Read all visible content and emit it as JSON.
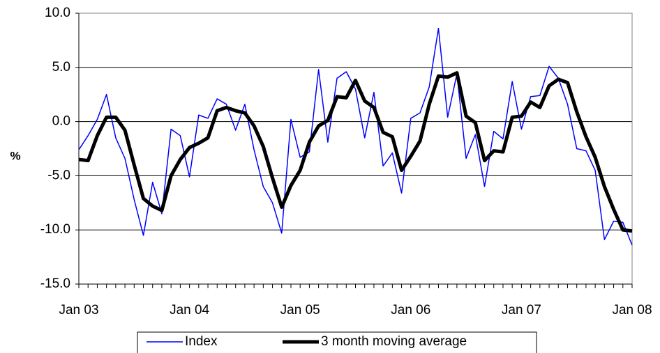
{
  "chart_data": {
    "type": "line",
    "y_label": "%",
    "categories": [
      "Jan 03",
      null,
      null,
      null,
      null,
      null,
      null,
      null,
      null,
      null,
      null,
      null,
      "Jan 04",
      null,
      null,
      null,
      null,
      null,
      null,
      null,
      null,
      null,
      null,
      null,
      "Jan 05",
      null,
      null,
      null,
      null,
      null,
      null,
      null,
      null,
      null,
      null,
      null,
      "Jan 06",
      null,
      null,
      null,
      null,
      null,
      null,
      null,
      null,
      null,
      null,
      null,
      "Jan 07",
      null,
      null,
      null,
      null,
      null,
      null,
      null,
      null,
      null,
      null,
      null,
      "Jan 08"
    ],
    "series": [
      {
        "name": "Index",
        "color": "#0000ff",
        "width": 1.5,
        "values": [
          -2.6,
          -1.3,
          0.2,
          2.5,
          -1.5,
          -3.4,
          -7.2,
          -10.5,
          -5.6,
          -8.5,
          -0.7,
          -1.3,
          -5.1,
          0.6,
          0.3,
          2.1,
          1.6,
          -0.8,
          1.6,
          -2.6,
          -6.0,
          -7.5,
          -10.3,
          0.2,
          -3.3,
          -2.8,
          4.8,
          -1.9,
          4.0,
          4.6,
          3.0,
          -1.5,
          2.7,
          -4.1,
          -2.9,
          -6.6,
          0.3,
          0.8,
          3.2,
          8.6,
          0.4,
          4.4,
          -3.4,
          -1.2,
          -6.0,
          -0.9,
          -1.6,
          3.7,
          -0.7,
          2.3,
          2.4,
          5.1,
          4.0,
          1.6,
          -2.5,
          -2.7,
          -4.5,
          -10.9,
          -9.2,
          -9.3,
          -11.4
        ]
      },
      {
        "name": "3 month moving average",
        "color": "#000000",
        "width": 5,
        "values": [
          -3.5,
          -3.6,
          -1.3,
          0.4,
          0.4,
          -0.8,
          -4.0,
          -7.1,
          -7.8,
          -8.2,
          -5.0,
          -3.5,
          -2.4,
          -2.0,
          -1.5,
          1.0,
          1.3,
          1.0,
          0.8,
          -0.4,
          -2.3,
          -5.2,
          -7.9,
          -5.9,
          -4.5,
          -1.9,
          -0.4,
          0.1,
          2.3,
          2.2,
          3.8,
          1.9,
          1.3,
          -1.0,
          -1.4,
          -4.5,
          -3.2,
          -1.8,
          1.6,
          4.2,
          4.1,
          4.5,
          0.5,
          -0.1,
          -3.6,
          -2.7,
          -2.8,
          0.4,
          0.5,
          1.8,
          1.3,
          3.3,
          3.9,
          3.6,
          0.9,
          -1.4,
          -3.3,
          -6.0,
          -8.1,
          -10.0,
          -10.1
        ]
      }
    ],
    "ylim": [
      -15,
      10
    ],
    "yticks": [
      {
        "value": -15,
        "label": "-15.0"
      },
      {
        "value": -10,
        "label": "-10.0"
      },
      {
        "value": -5,
        "label": "-5.0"
      },
      {
        "value": 0,
        "label": "0.0"
      },
      {
        "value": 5,
        "label": "5.0"
      },
      {
        "value": 10,
        "label": "10.0"
      }
    ],
    "grid": true,
    "legend": "bottom"
  }
}
